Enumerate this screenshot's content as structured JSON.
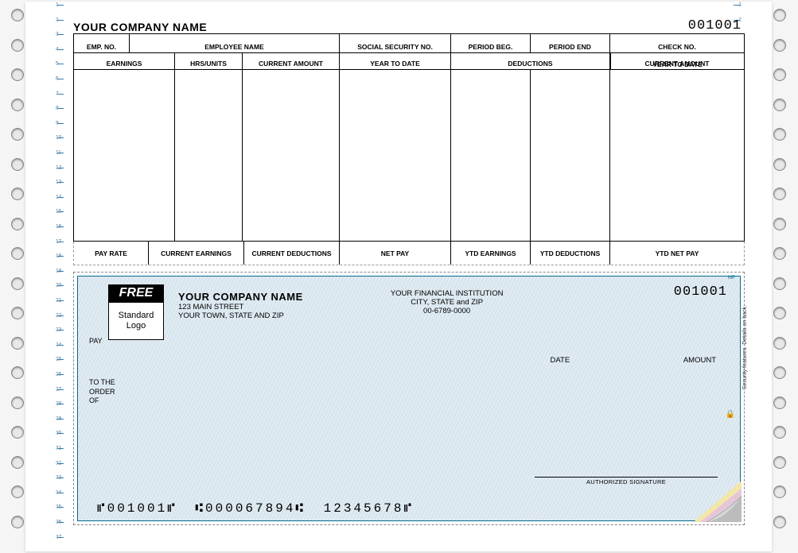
{
  "stub": {
    "company_name": "YOUR COMPANY NAME",
    "check_number": "001001",
    "row1": {
      "emp_no": "EMP. NO.",
      "employee_name": "EMPLOYEE NAME",
      "ssn": "SOCIAL SECURITY NO.",
      "period_beg": "PERIOD BEG.",
      "period_end": "PERIOD END",
      "check_no": "CHECK NO."
    },
    "row2": {
      "earnings": "EARNINGS",
      "hrs_units": "HRS/UNITS",
      "current_amount_l": "CURRENT AMOUNT",
      "ytd_l": "YEAR TO DATE",
      "deductions": "DEDUCTIONS",
      "current_amount_r": "CURRENT AMOUNT",
      "ytd_r": "YEAR TO DATE"
    },
    "footer": {
      "pay_rate": "PAY RATE",
      "cur_earn": "CURRENT EARNINGS",
      "cur_ded": "CURRENT DEDUCTIONS",
      "net_pay": "NET PAY",
      "ytd_earn": "YTD EARNINGS",
      "ytd_ded": "YTD DEDUCTIONS",
      "ytd_net": "YTD NET PAY"
    },
    "col_widths": {
      "row1": [
        70,
        264,
        140,
        100,
        100,
        170
      ],
      "row2": [
        127,
        85,
        122,
        140,
        200,
        170
      ],
      "body": [
        127,
        85,
        122,
        140,
        100,
        100,
        170
      ],
      "footer": [
        94,
        120,
        120,
        140,
        100,
        100,
        170
      ]
    }
  },
  "check": {
    "logo": {
      "free": "FREE",
      "standard": "Standard",
      "logo": "Logo"
    },
    "payer": {
      "name": "YOUR COMPANY NAME",
      "addr1": "123 MAIN STREET",
      "addr2": "YOUR TOWN, STATE AND ZIP"
    },
    "bank": {
      "name": "YOUR FINANCIAL INSTITUTION",
      "city": "CITY, STATE and ZIP",
      "routing": "00-6789-0000"
    },
    "check_number": "001001",
    "pay_label": "PAY",
    "date_label": "DATE",
    "amount_label": "AMOUNT",
    "order_of_1": "TO THE",
    "order_of_2": "ORDER",
    "order_of_3": "OF",
    "signature_label": "AUTHORIZED SIGNATURE",
    "micr": "⑈001001⑈  ⑆000067894⑆  12345678⑈",
    "security_text": "Security features. Details on back.",
    "mp": "MP"
  },
  "layout": {
    "paper_bg": "#ffffff",
    "check_border": "#006b8f",
    "check_bg_a": "#e2ecf2",
    "check_bg_b": "#d6e4ed",
    "hole_count": 18,
    "hole_spacing": 37.5,
    "hole_start": 10,
    "tick_count": 37,
    "tick_spacing": 18.6
  }
}
